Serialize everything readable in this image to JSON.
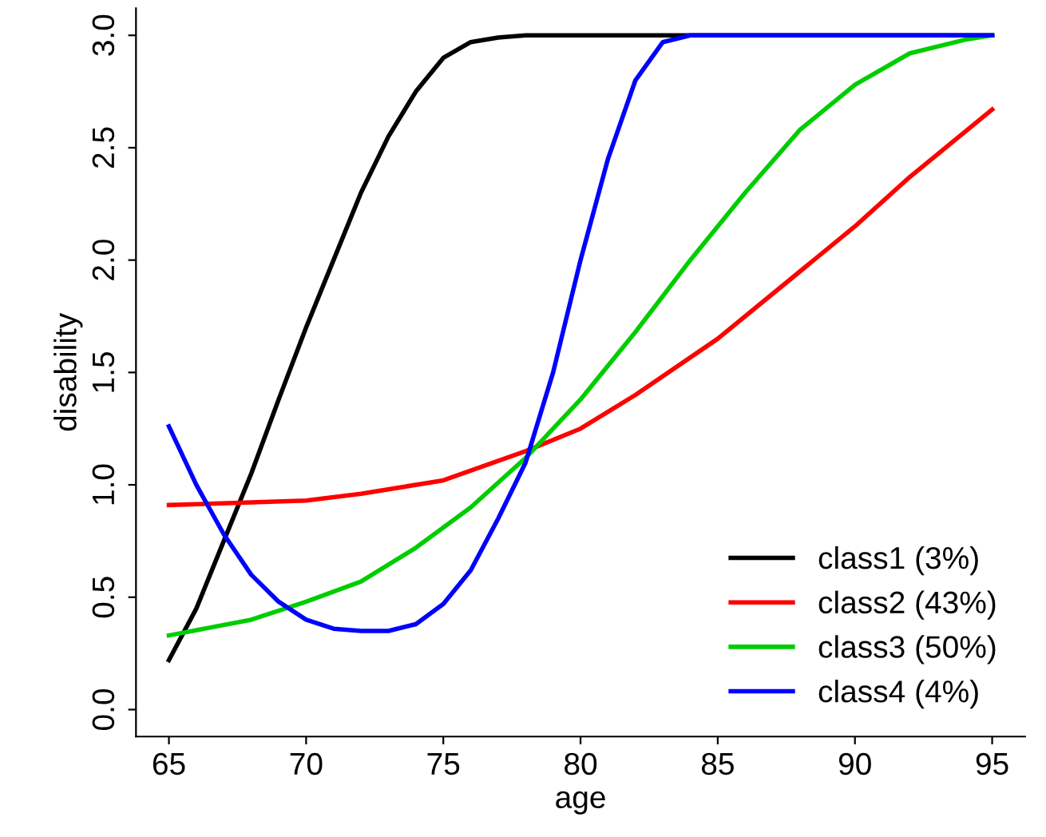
{
  "chart_data": {
    "type": "line",
    "xlabel": "age",
    "ylabel": "disability",
    "xlim": [
      63.8,
      96.2
    ],
    "ylim": [
      -0.12,
      3.12
    ],
    "xticks": [
      65,
      70,
      75,
      80,
      85,
      90,
      95
    ],
    "yticks": [
      {
        "value": 0,
        "label": "0.0"
      },
      {
        "value": 0.5,
        "label": "0.5"
      },
      {
        "value": 1,
        "label": "1.0"
      },
      {
        "value": 1.5,
        "label": "1.5"
      },
      {
        "value": 2,
        "label": "2.0"
      },
      {
        "value": 2.5,
        "label": "2.5"
      },
      {
        "value": 3,
        "label": "3.0"
      }
    ],
    "grid": false,
    "legend": "bottom right",
    "line_style": "solid",
    "series": [
      {
        "name": "class1 (3%)",
        "color": "#000000",
        "x": [
          65,
          66,
          67,
          68,
          69,
          70,
          71,
          72,
          73,
          74,
          75,
          76,
          77,
          78,
          95
        ],
        "values": [
          0.22,
          0.45,
          0.75,
          1.05,
          1.38,
          1.7,
          2.0,
          2.3,
          2.55,
          2.75,
          2.9,
          2.97,
          2.99,
          3.0,
          3.0
        ]
      },
      {
        "name": "class2 (43%)",
        "color": "#ff0000",
        "x": [
          65,
          70,
          72,
          75,
          78,
          80,
          82,
          85,
          88,
          90,
          92,
          95
        ],
        "values": [
          0.91,
          0.93,
          0.96,
          1.02,
          1.15,
          1.25,
          1.4,
          1.65,
          1.95,
          2.15,
          2.37,
          2.67
        ]
      },
      {
        "name": "class3 (50%)",
        "color": "#00cd00",
        "x": [
          65,
          68,
          70,
          72,
          74,
          76,
          78,
          80,
          82,
          84,
          86,
          88,
          90,
          92,
          94,
          95
        ],
        "values": [
          0.33,
          0.4,
          0.48,
          0.57,
          0.72,
          0.9,
          1.12,
          1.38,
          1.68,
          2.0,
          2.3,
          2.58,
          2.78,
          2.92,
          2.98,
          3.0
        ]
      },
      {
        "name": "class4 (4%)",
        "color": "#0000ff",
        "x": [
          65,
          66,
          67,
          68,
          69,
          70,
          71,
          72,
          73,
          74,
          75,
          76,
          77,
          78,
          79,
          80,
          81,
          82,
          83,
          84,
          95
        ],
        "values": [
          1.26,
          1.0,
          0.78,
          0.6,
          0.48,
          0.4,
          0.36,
          0.35,
          0.35,
          0.38,
          0.47,
          0.62,
          0.85,
          1.1,
          1.5,
          2.0,
          2.45,
          2.8,
          2.97,
          3.0,
          3.0
        ]
      }
    ]
  }
}
